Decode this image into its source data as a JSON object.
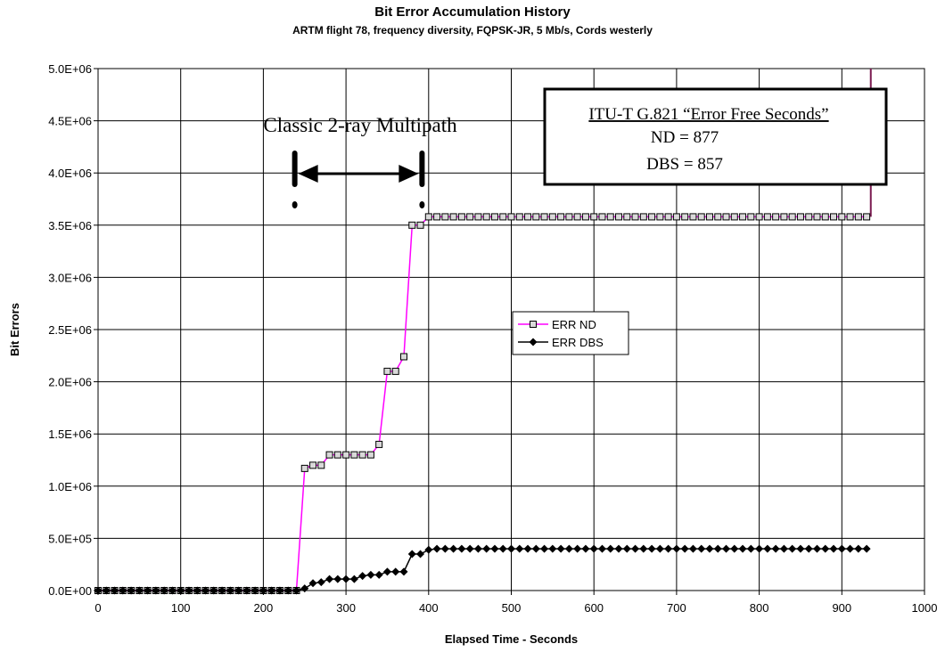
{
  "chart_data": {
    "type": "line",
    "title": "Bit Error Accumulation History",
    "subtitle": "ARTM flight 78, frequency diversity, FQPSK-JR, 5 Mb/s, Cords westerly",
    "xlabel": "Elapsed Time - Seconds",
    "ylabel": "Bit Errors",
    "xlim": [
      0,
      1000
    ],
    "ylim": [
      0,
      5000000
    ],
    "x_ticks": [
      "0",
      "100",
      "200",
      "300",
      "400",
      "500",
      "600",
      "700",
      "800",
      "900",
      "1000"
    ],
    "y_ticks": [
      "0.0E+00",
      "5.0E+05",
      "1.0E+06",
      "1.5E+06",
      "2.0E+06",
      "2.5E+06",
      "3.0E+06",
      "3.5E+06",
      "4.0E+06",
      "4.5E+06",
      "5.0E+06"
    ],
    "grid": true,
    "legend_position": "center-right",
    "series": [
      {
        "name": "ERR ND",
        "color": "#ff00ff",
        "marker": "square",
        "x": [
          0,
          10,
          20,
          30,
          40,
          50,
          60,
          70,
          80,
          90,
          100,
          110,
          120,
          130,
          140,
          150,
          160,
          170,
          180,
          190,
          200,
          210,
          220,
          230,
          240,
          250,
          260,
          270,
          280,
          290,
          300,
          310,
          320,
          330,
          340,
          350,
          360,
          370,
          380,
          390,
          400,
          410,
          420,
          430,
          440,
          450,
          460,
          470,
          480,
          490,
          500,
          510,
          520,
          530,
          540,
          550,
          560,
          570,
          580,
          590,
          600,
          610,
          620,
          630,
          640,
          650,
          660,
          670,
          680,
          690,
          700,
          710,
          720,
          730,
          740,
          750,
          760,
          770,
          780,
          790,
          800,
          810,
          820,
          830,
          840,
          850,
          860,
          870,
          880,
          890,
          900,
          910,
          920,
          930
        ],
        "y": [
          0,
          0,
          0,
          0,
          0,
          0,
          0,
          0,
          0,
          0,
          0,
          0,
          0,
          0,
          0,
          0,
          0,
          0,
          0,
          0,
          0,
          0,
          0,
          0,
          0,
          1170000,
          1200000,
          1200000,
          1300000,
          1300000,
          1300000,
          1300000,
          1300000,
          1300000,
          1400000,
          2100000,
          2100000,
          2240000,
          3500000,
          3500000,
          3580000,
          3580000,
          3580000,
          3580000,
          3580000,
          3580000,
          3580000,
          3580000,
          3580000,
          3580000,
          3580000,
          3580000,
          3580000,
          3580000,
          3580000,
          3580000,
          3580000,
          3580000,
          3580000,
          3580000,
          3580000,
          3580000,
          3580000,
          3580000,
          3580000,
          3580000,
          3580000,
          3580000,
          3580000,
          3580000,
          3580000,
          3580000,
          3580000,
          3580000,
          3580000,
          3580000,
          3580000,
          3580000,
          3580000,
          3580000,
          3580000,
          3580000,
          3580000,
          3580000,
          3580000,
          3580000,
          3580000,
          3580000,
          3580000,
          3580000,
          3580000,
          3580000,
          3580000,
          3580000
        ]
      },
      {
        "name": "ERR DBS",
        "color": "#000000",
        "marker": "diamond",
        "x": [
          0,
          10,
          20,
          30,
          40,
          50,
          60,
          70,
          80,
          90,
          100,
          110,
          120,
          130,
          140,
          150,
          160,
          170,
          180,
          190,
          200,
          210,
          220,
          230,
          240,
          250,
          260,
          270,
          280,
          290,
          300,
          310,
          320,
          330,
          340,
          350,
          360,
          370,
          380,
          390,
          400,
          410,
          420,
          430,
          440,
          450,
          460,
          470,
          480,
          490,
          500,
          510,
          520,
          530,
          540,
          550,
          560,
          570,
          580,
          590,
          600,
          610,
          620,
          630,
          640,
          650,
          660,
          670,
          680,
          690,
          700,
          710,
          720,
          730,
          740,
          750,
          760,
          770,
          780,
          790,
          800,
          810,
          820,
          830,
          840,
          850,
          860,
          870,
          880,
          890,
          900,
          910,
          920,
          930
        ],
        "y": [
          0,
          0,
          0,
          0,
          0,
          0,
          0,
          0,
          0,
          0,
          0,
          0,
          0,
          0,
          0,
          0,
          0,
          0,
          0,
          0,
          0,
          0,
          0,
          0,
          0,
          20000,
          70000,
          80000,
          110000,
          110000,
          110000,
          110000,
          140000,
          150000,
          150000,
          180000,
          180000,
          180000,
          350000,
          350000,
          390000,
          400000,
          400000,
          400000,
          400000,
          400000,
          400000,
          400000,
          400000,
          400000,
          400000,
          400000,
          400000,
          400000,
          400000,
          400000,
          400000,
          400000,
          400000,
          400000,
          400000,
          400000,
          400000,
          400000,
          400000,
          400000,
          400000,
          400000,
          400000,
          400000,
          400000,
          400000,
          400000,
          400000,
          400000,
          400000,
          400000,
          400000,
          400000,
          400000,
          400000,
          400000,
          400000,
          400000,
          400000,
          400000,
          400000,
          400000,
          400000,
          400000,
          400000,
          400000,
          400000,
          400000
        ]
      }
    ],
    "extra_line": {
      "x": 935,
      "y_from": 3580000,
      "y_to": 5000000,
      "color": "#7a1a50"
    },
    "annotations": {
      "multipath_label": "Classic 2-ray Multipath",
      "multipath_x_range": [
        238,
        392
      ],
      "box_title": "ITU-T G.821 “Error Free Seconds”",
      "box_line1": "ND = 877",
      "box_line2": "DBS = 857"
    }
  }
}
